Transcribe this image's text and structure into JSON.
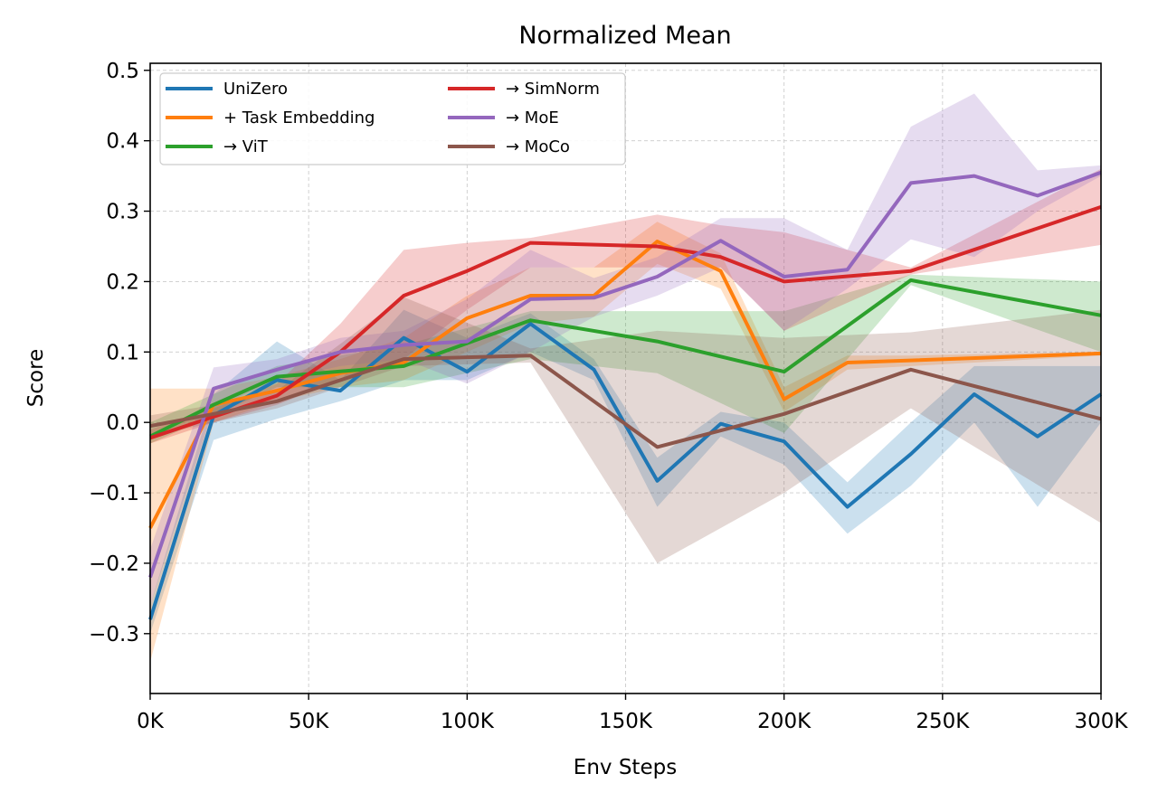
{
  "chart_data": {
    "type": "line",
    "title": "Normalized Mean",
    "xlabel": "Env Steps",
    "ylabel": "Score",
    "xlim": [
      0,
      300000
    ],
    "ylim": [
      -0.385,
      0.51
    ],
    "grid": true,
    "legend_placement": "top-left",
    "x_ticks": [
      {
        "value": 0,
        "label": "0K"
      },
      {
        "value": 50000,
        "label": "50K"
      },
      {
        "value": 100000,
        "label": "100K"
      },
      {
        "value": 150000,
        "label": "150K"
      },
      {
        "value": 200000,
        "label": "200K"
      },
      {
        "value": 250000,
        "label": "250K"
      },
      {
        "value": 300000,
        "label": "300K"
      }
    ],
    "y_ticks": [
      {
        "value": 0.5,
        "label": "0.5"
      },
      {
        "value": 0.4,
        "label": "0.4"
      },
      {
        "value": 0.3,
        "label": "0.3"
      },
      {
        "value": 0.2,
        "label": "0.2"
      },
      {
        "value": 0.1,
        "label": "0.1"
      },
      {
        "value": 0.0,
        "label": "0.0"
      },
      {
        "value": -0.1,
        "label": "−0.1"
      },
      {
        "value": -0.2,
        "label": "−0.2"
      },
      {
        "value": -0.3,
        "label": "−0.3"
      }
    ],
    "series": [
      {
        "name": "UniZero",
        "color": "#1f77b4",
        "x": [
          0,
          20000,
          40000,
          60000,
          80000,
          100000,
          120000,
          140000,
          160000,
          180000,
          200000,
          220000,
          240000,
          260000,
          280000,
          300000
        ],
        "y": [
          -0.28,
          0.01,
          0.06,
          0.045,
          0.12,
          0.072,
          0.14,
          0.075,
          -0.083,
          -0.002,
          -0.027,
          -0.12,
          -0.045,
          0.04,
          -0.02,
          0.04
        ],
        "lower": [
          -0.3,
          -0.025,
          0.005,
          0.03,
          0.06,
          0.06,
          0.1,
          0.06,
          -0.12,
          -0.02,
          -0.06,
          -0.158,
          -0.09,
          0.0,
          -0.12,
          0.0
        ],
        "upper": [
          -0.26,
          0.04,
          0.115,
          0.06,
          0.16,
          0.12,
          0.155,
          0.09,
          -0.05,
          0.015,
          0.0,
          -0.085,
          0.0,
          0.08,
          0.08,
          0.08
        ]
      },
      {
        "name": "+ Task Embedding",
        "color": "#ff7f0e",
        "x": [
          0,
          20000,
          40000,
          60000,
          80000,
          100000,
          120000,
          140000,
          160000,
          180000,
          200000,
          220000,
          240000,
          300000
        ],
        "y": [
          -0.15,
          0.025,
          0.045,
          0.07,
          0.085,
          0.148,
          0.18,
          0.18,
          0.257,
          0.215,
          0.033,
          0.085,
          0.088,
          0.098
        ],
        "lower": [
          -0.34,
          0.0,
          0.03,
          0.05,
          0.06,
          0.1,
          0.14,
          0.15,
          0.225,
          0.19,
          0.015,
          0.075,
          0.08,
          0.095
        ],
        "upper": [
          0.048,
          0.048,
          0.065,
          0.09,
          0.12,
          0.18,
          0.22,
          0.22,
          0.285,
          0.24,
          0.05,
          0.095,
          0.095,
          0.1
        ]
      },
      {
        "name": "→ ViT",
        "color": "#2ca02c",
        "x": [
          0,
          20000,
          40000,
          80000,
          120000,
          160000,
          200000,
          240000,
          300000
        ],
        "y": [
          -0.02,
          0.025,
          0.065,
          0.08,
          0.145,
          0.115,
          0.072,
          0.202,
          0.152
        ],
        "lower": [
          -0.03,
          0.01,
          0.05,
          0.05,
          0.09,
          0.07,
          -0.015,
          0.195,
          0.1
        ],
        "upper": [
          0.0,
          0.04,
          0.08,
          0.11,
          0.158,
          0.158,
          0.158,
          0.21,
          0.2
        ]
      },
      {
        "name": "→ SimNorm",
        "color": "#d62728",
        "x": [
          0,
          20000,
          40000,
          60000,
          80000,
          100000,
          120000,
          160000,
          180000,
          200000,
          240000,
          300000
        ],
        "y": [
          -0.022,
          0.008,
          0.038,
          0.1,
          0.18,
          0.215,
          0.255,
          0.25,
          0.235,
          0.2,
          0.215,
          0.306
        ],
        "lower": [
          -0.03,
          0.0,
          0.025,
          0.06,
          0.09,
          0.16,
          0.22,
          0.22,
          0.22,
          0.13,
          0.21,
          0.252
        ],
        "upper": [
          -0.01,
          0.02,
          0.055,
          0.14,
          0.245,
          0.255,
          0.262,
          0.295,
          0.28,
          0.27,
          0.22,
          0.36
        ]
      },
      {
        "name": "→ MoE",
        "color": "#9467bd",
        "x": [
          0,
          20000,
          40000,
          60000,
          80000,
          100000,
          120000,
          140000,
          160000,
          180000,
          200000,
          220000,
          240000,
          260000,
          280000,
          300000
        ],
        "y": [
          -0.22,
          0.048,
          0.075,
          0.1,
          0.11,
          0.115,
          0.175,
          0.177,
          0.207,
          0.258,
          0.207,
          0.217,
          0.34,
          0.35,
          0.322,
          0.355
        ],
        "lower": [
          -0.26,
          0.02,
          0.06,
          0.08,
          0.09,
          0.055,
          0.1,
          0.15,
          0.18,
          0.22,
          0.13,
          0.19,
          0.26,
          0.235,
          0.3,
          0.35
        ],
        "upper": [
          -0.18,
          0.078,
          0.09,
          0.12,
          0.13,
          0.175,
          0.245,
          0.205,
          0.235,
          0.29,
          0.29,
          0.245,
          0.42,
          0.467,
          0.358,
          0.365
        ]
      },
      {
        "name": "→ MoCo",
        "color": "#8c564b",
        "x": [
          0,
          20000,
          40000,
          80000,
          120000,
          160000,
          200000,
          240000,
          300000
        ],
        "y": [
          -0.005,
          0.012,
          0.03,
          0.09,
          0.095,
          -0.035,
          0.012,
          0.075,
          0.005
        ],
        "lower": [
          -0.02,
          0.0,
          0.02,
          0.08,
          0.085,
          -0.2,
          -0.1,
          0.02,
          -0.143
        ],
        "upper": [
          0.01,
          0.025,
          0.045,
          0.178,
          0.105,
          0.13,
          0.12,
          0.128,
          0.16
        ]
      }
    ]
  }
}
